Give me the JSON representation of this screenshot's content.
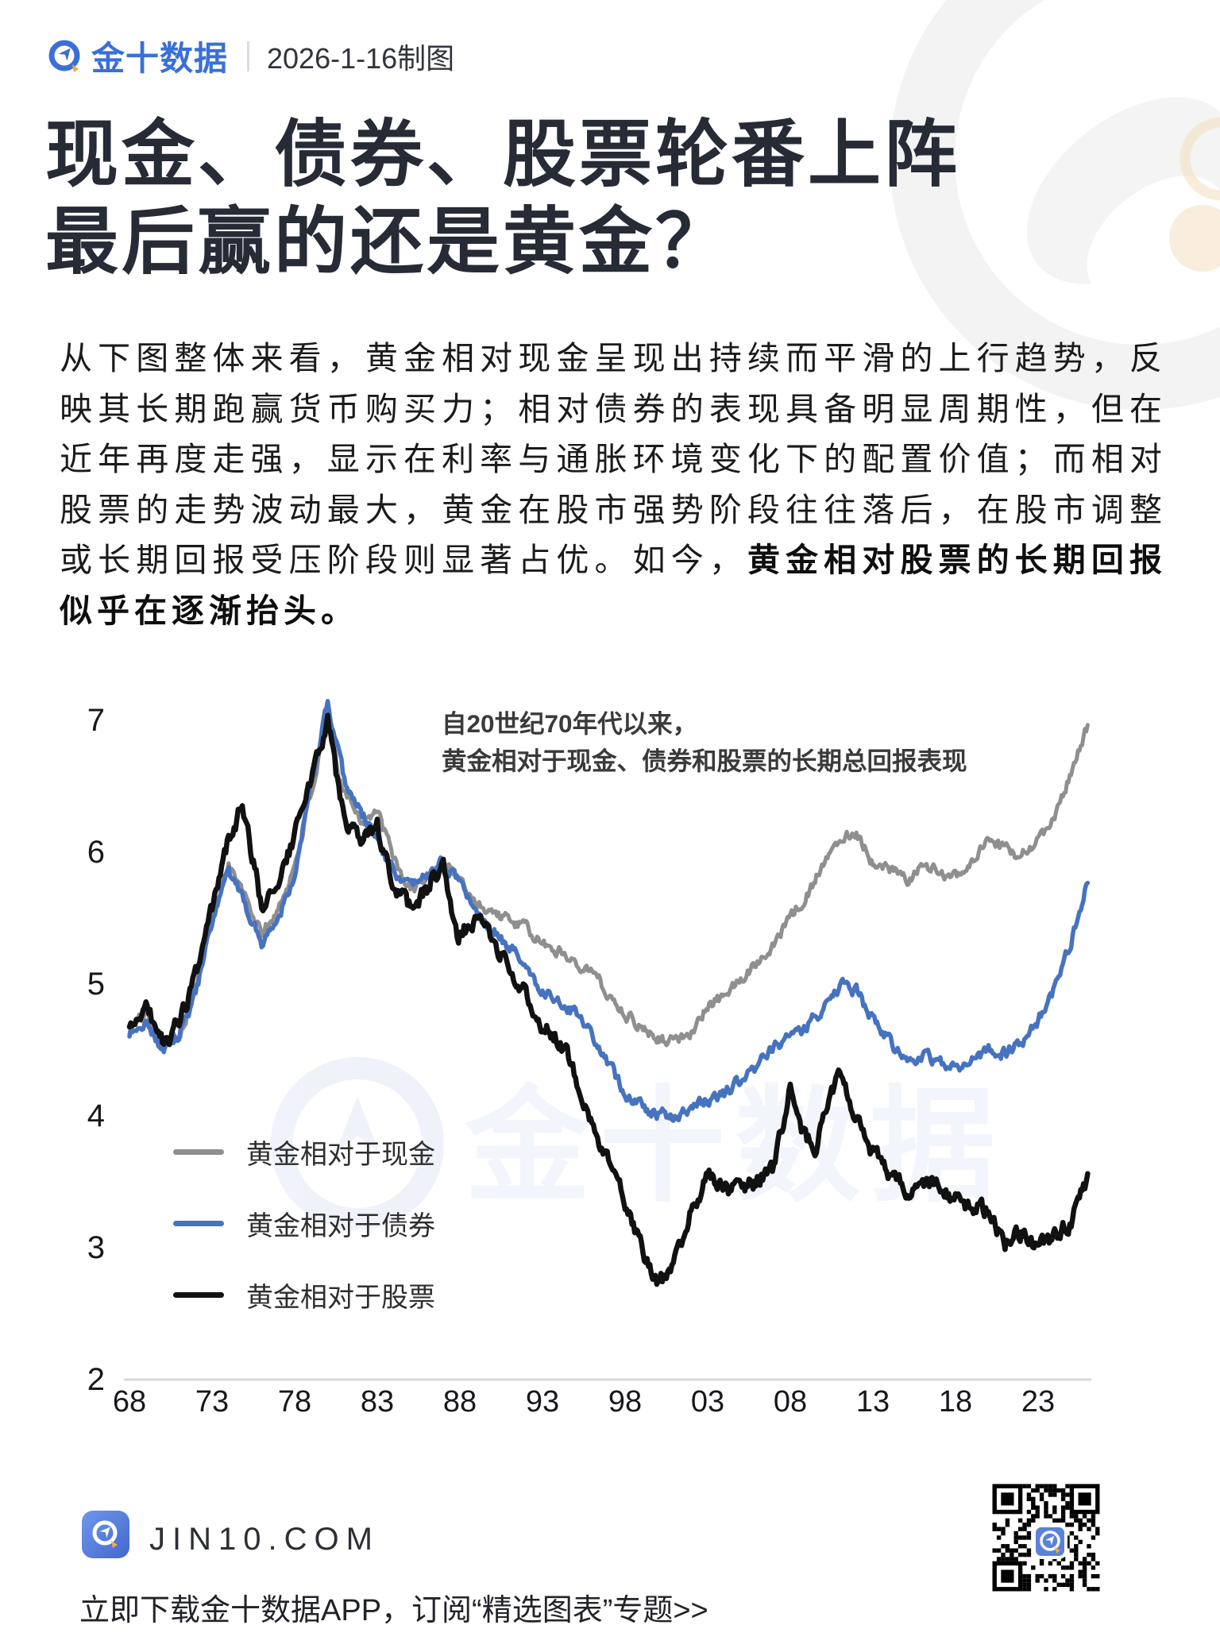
{
  "header": {
    "brand": "金十数据",
    "date": "2026-1-16制图"
  },
  "title": {
    "line1": "现金、债券、股票轮番上阵",
    "line2": "最后赢的还是黄金？"
  },
  "paragraph": {
    "normal": "从下图整体来看，黄金相对现金呈现出持续而平滑的上行趋势，反映其长期跑赢货币购买力；相对债券的表现具备明显周期性，但在近年再度走强，显示在利率与通胀环境变化下的配置价值；而相对股票的走势波动最大，黄金在股市强势阶段往往落后，在股市调整或长期回报受压阶段则显著占优。如今，",
    "bold": "黄金相对股票的长期回报似乎在逐渐抬头。"
  },
  "chart_data": {
    "type": "line",
    "annotation_line1": "自20世纪70年代以来，",
    "annotation_line2": "黄金相对于现金、债券和股票的长期总回报表现",
    "x_tick_labels": [
      "68",
      "73",
      "78",
      "83",
      "88",
      "93",
      "98",
      "03",
      "08",
      "13",
      "18",
      "23"
    ],
    "x_tick_years": [
      1968,
      1973,
      1978,
      1983,
      1988,
      1993,
      1998,
      2003,
      2008,
      2013,
      2018,
      2023
    ],
    "y_tick_labels": [
      "7",
      "6",
      "5",
      "4",
      "3",
      "2"
    ],
    "y_ticks": [
      7,
      6,
      5,
      4,
      3,
      2
    ],
    "xlim": [
      1968,
      2026.5
    ],
    "ylim": [
      2,
      7.3
    ],
    "grid": "baseline-only",
    "legend_position": "inside-left",
    "series": [
      {
        "name": "黄金相对于现金",
        "color": "#8f8f8f",
        "points": [
          [
            1968,
            4.65
          ],
          [
            1969,
            4.78
          ],
          [
            1970,
            4.55
          ],
          [
            1971,
            4.62
          ],
          [
            1972,
            4.95
          ],
          [
            1973,
            5.5
          ],
          [
            1974,
            5.92
          ],
          [
            1975,
            5.65
          ],
          [
            1976,
            5.38
          ],
          [
            1977,
            5.55
          ],
          [
            1978,
            5.9
          ],
          [
            1979,
            6.45
          ],
          [
            1980,
            7.0
          ],
          [
            1980.7,
            6.55
          ],
          [
            1981,
            6.5
          ],
          [
            1982,
            6.25
          ],
          [
            1983,
            6.3
          ],
          [
            1984,
            5.95
          ],
          [
            1985,
            5.7
          ],
          [
            1986,
            5.82
          ],
          [
            1987,
            5.95
          ],
          [
            1988,
            5.78
          ],
          [
            1989,
            5.62
          ],
          [
            1990,
            5.55
          ],
          [
            1991,
            5.48
          ],
          [
            1992,
            5.42
          ],
          [
            1993,
            5.3
          ],
          [
            1994,
            5.25
          ],
          [
            1995,
            5.18
          ],
          [
            1996,
            5.1
          ],
          [
            1997,
            4.92
          ],
          [
            1998,
            4.78
          ],
          [
            1999,
            4.67
          ],
          [
            2000,
            4.6
          ],
          [
            2001,
            4.56
          ],
          [
            2002,
            4.65
          ],
          [
            2003,
            4.82
          ],
          [
            2004,
            4.92
          ],
          [
            2005,
            5.02
          ],
          [
            2006,
            5.18
          ],
          [
            2007,
            5.32
          ],
          [
            2008,
            5.5
          ],
          [
            2009,
            5.68
          ],
          [
            2010,
            5.9
          ],
          [
            2011,
            6.12
          ],
          [
            2012,
            6.16
          ],
          [
            2013,
            5.92
          ],
          [
            2014,
            5.88
          ],
          [
            2015,
            5.78
          ],
          [
            2016,
            5.88
          ],
          [
            2017,
            5.86
          ],
          [
            2018,
            5.82
          ],
          [
            2019,
            5.92
          ],
          [
            2020,
            6.08
          ],
          [
            2021,
            6.02
          ],
          [
            2022,
            5.98
          ],
          [
            2023,
            6.08
          ],
          [
            2024,
            6.28
          ],
          [
            2025,
            6.6
          ],
          [
            2026,
            6.95
          ]
        ]
      },
      {
        "name": "黄金相对于债券",
        "color": "#4673bf",
        "points": [
          [
            1968,
            4.63
          ],
          [
            1969,
            4.72
          ],
          [
            1970,
            4.5
          ],
          [
            1971,
            4.6
          ],
          [
            1972,
            4.93
          ],
          [
            1973,
            5.45
          ],
          [
            1974,
            5.85
          ],
          [
            1975,
            5.6
          ],
          [
            1976,
            5.32
          ],
          [
            1977,
            5.5
          ],
          [
            1978,
            5.85
          ],
          [
            1979,
            6.5
          ],
          [
            1980,
            7.12
          ],
          [
            1980.7,
            6.7
          ],
          [
            1981,
            6.55
          ],
          [
            1982,
            6.3
          ],
          [
            1983,
            6.1
          ],
          [
            1984,
            5.85
          ],
          [
            1985,
            5.72
          ],
          [
            1986,
            5.82
          ],
          [
            1987,
            5.92
          ],
          [
            1988,
            5.78
          ],
          [
            1989,
            5.55
          ],
          [
            1990,
            5.42
          ],
          [
            1991,
            5.28
          ],
          [
            1992,
            5.12
          ],
          [
            1993,
            4.95
          ],
          [
            1994,
            4.88
          ],
          [
            1995,
            4.78
          ],
          [
            1996,
            4.62
          ],
          [
            1997,
            4.38
          ],
          [
            1998,
            4.18
          ],
          [
            1999,
            4.07
          ],
          [
            2000,
            4.02
          ],
          [
            2001,
            3.97
          ],
          [
            2002,
            4.07
          ],
          [
            2003,
            4.12
          ],
          [
            2004,
            4.17
          ],
          [
            2005,
            4.27
          ],
          [
            2006,
            4.38
          ],
          [
            2007,
            4.52
          ],
          [
            2008,
            4.62
          ],
          [
            2009,
            4.67
          ],
          [
            2010,
            4.82
          ],
          [
            2011,
            5.0
          ],
          [
            2012,
            4.95
          ],
          [
            2013,
            4.72
          ],
          [
            2014,
            4.57
          ],
          [
            2015,
            4.42
          ],
          [
            2016,
            4.47
          ],
          [
            2017,
            4.42
          ],
          [
            2018,
            4.37
          ],
          [
            2019,
            4.42
          ],
          [
            2020,
            4.52
          ],
          [
            2021,
            4.47
          ],
          [
            2022,
            4.57
          ],
          [
            2023,
            4.72
          ],
          [
            2024,
            4.97
          ],
          [
            2025,
            5.32
          ],
          [
            2026,
            5.8
          ]
        ]
      },
      {
        "name": "黄金相对于股票",
        "color": "#111111",
        "points": [
          [
            1968,
            4.63
          ],
          [
            1969,
            4.85
          ],
          [
            1970,
            4.55
          ],
          [
            1971,
            4.7
          ],
          [
            1972,
            5.05
          ],
          [
            1973,
            5.55
          ],
          [
            1974,
            6.1
          ],
          [
            1974.8,
            6.35
          ],
          [
            1976,
            5.6
          ],
          [
            1977,
            5.78
          ],
          [
            1978,
            6.12
          ],
          [
            1979,
            6.55
          ],
          [
            1980,
            7.02
          ],
          [
            1980.7,
            6.45
          ],
          [
            1981,
            6.25
          ],
          [
            1982,
            6.05
          ],
          [
            1983,
            6.18
          ],
          [
            1984,
            5.72
          ],
          [
            1985,
            5.58
          ],
          [
            1986,
            5.72
          ],
          [
            1987,
            5.92
          ],
          [
            1987.9,
            5.35
          ],
          [
            1989,
            5.52
          ],
          [
            1990,
            5.32
          ],
          [
            1991,
            5.12
          ],
          [
            1992,
            4.92
          ],
          [
            1993,
            4.68
          ],
          [
            1994,
            4.58
          ],
          [
            1995,
            4.32
          ],
          [
            1996,
            3.98
          ],
          [
            1997,
            3.62
          ],
          [
            1998,
            3.35
          ],
          [
            1999,
            2.98
          ],
          [
            2000,
            2.72
          ],
          [
            2001,
            2.88
          ],
          [
            2002,
            3.28
          ],
          [
            2003,
            3.52
          ],
          [
            2004,
            3.45
          ],
          [
            2005,
            3.42
          ],
          [
            2006,
            3.52
          ],
          [
            2007,
            3.6
          ],
          [
            2008,
            4.22
          ],
          [
            2008.8,
            3.85
          ],
          [
            2009.5,
            3.75
          ],
          [
            2010,
            4.05
          ],
          [
            2011,
            4.32
          ],
          [
            2012,
            3.95
          ],
          [
            2013,
            3.72
          ],
          [
            2014,
            3.58
          ],
          [
            2015,
            3.42
          ],
          [
            2016,
            3.52
          ],
          [
            2017,
            3.47
          ],
          [
            2018,
            3.37
          ],
          [
            2019,
            3.32
          ],
          [
            2020,
            3.27
          ],
          [
            2021,
            3.02
          ],
          [
            2022,
            3.12
          ],
          [
            2023,
            3.0
          ],
          [
            2024,
            3.1
          ],
          [
            2025,
            3.2
          ],
          [
            2026,
            3.52
          ]
        ]
      }
    ]
  },
  "legend": {
    "items": [
      {
        "label": "黄金相对于现金",
        "color": "#8f8f8f"
      },
      {
        "label": "黄金相对于债券",
        "color": "#4673bf"
      },
      {
        "label": "黄金相对于股票",
        "color": "#111111"
      }
    ]
  },
  "watermark": {
    "text": "金十数据"
  },
  "footer": {
    "site": "JIN10.COM",
    "tagline": "立即下载金十数据APP，订阅“精选图表”专题>>"
  },
  "colors": {
    "brand_blue": "#3a6fd8",
    "accent_orange": "#f2a93d",
    "baseline_gray": "#d8d8d8"
  }
}
